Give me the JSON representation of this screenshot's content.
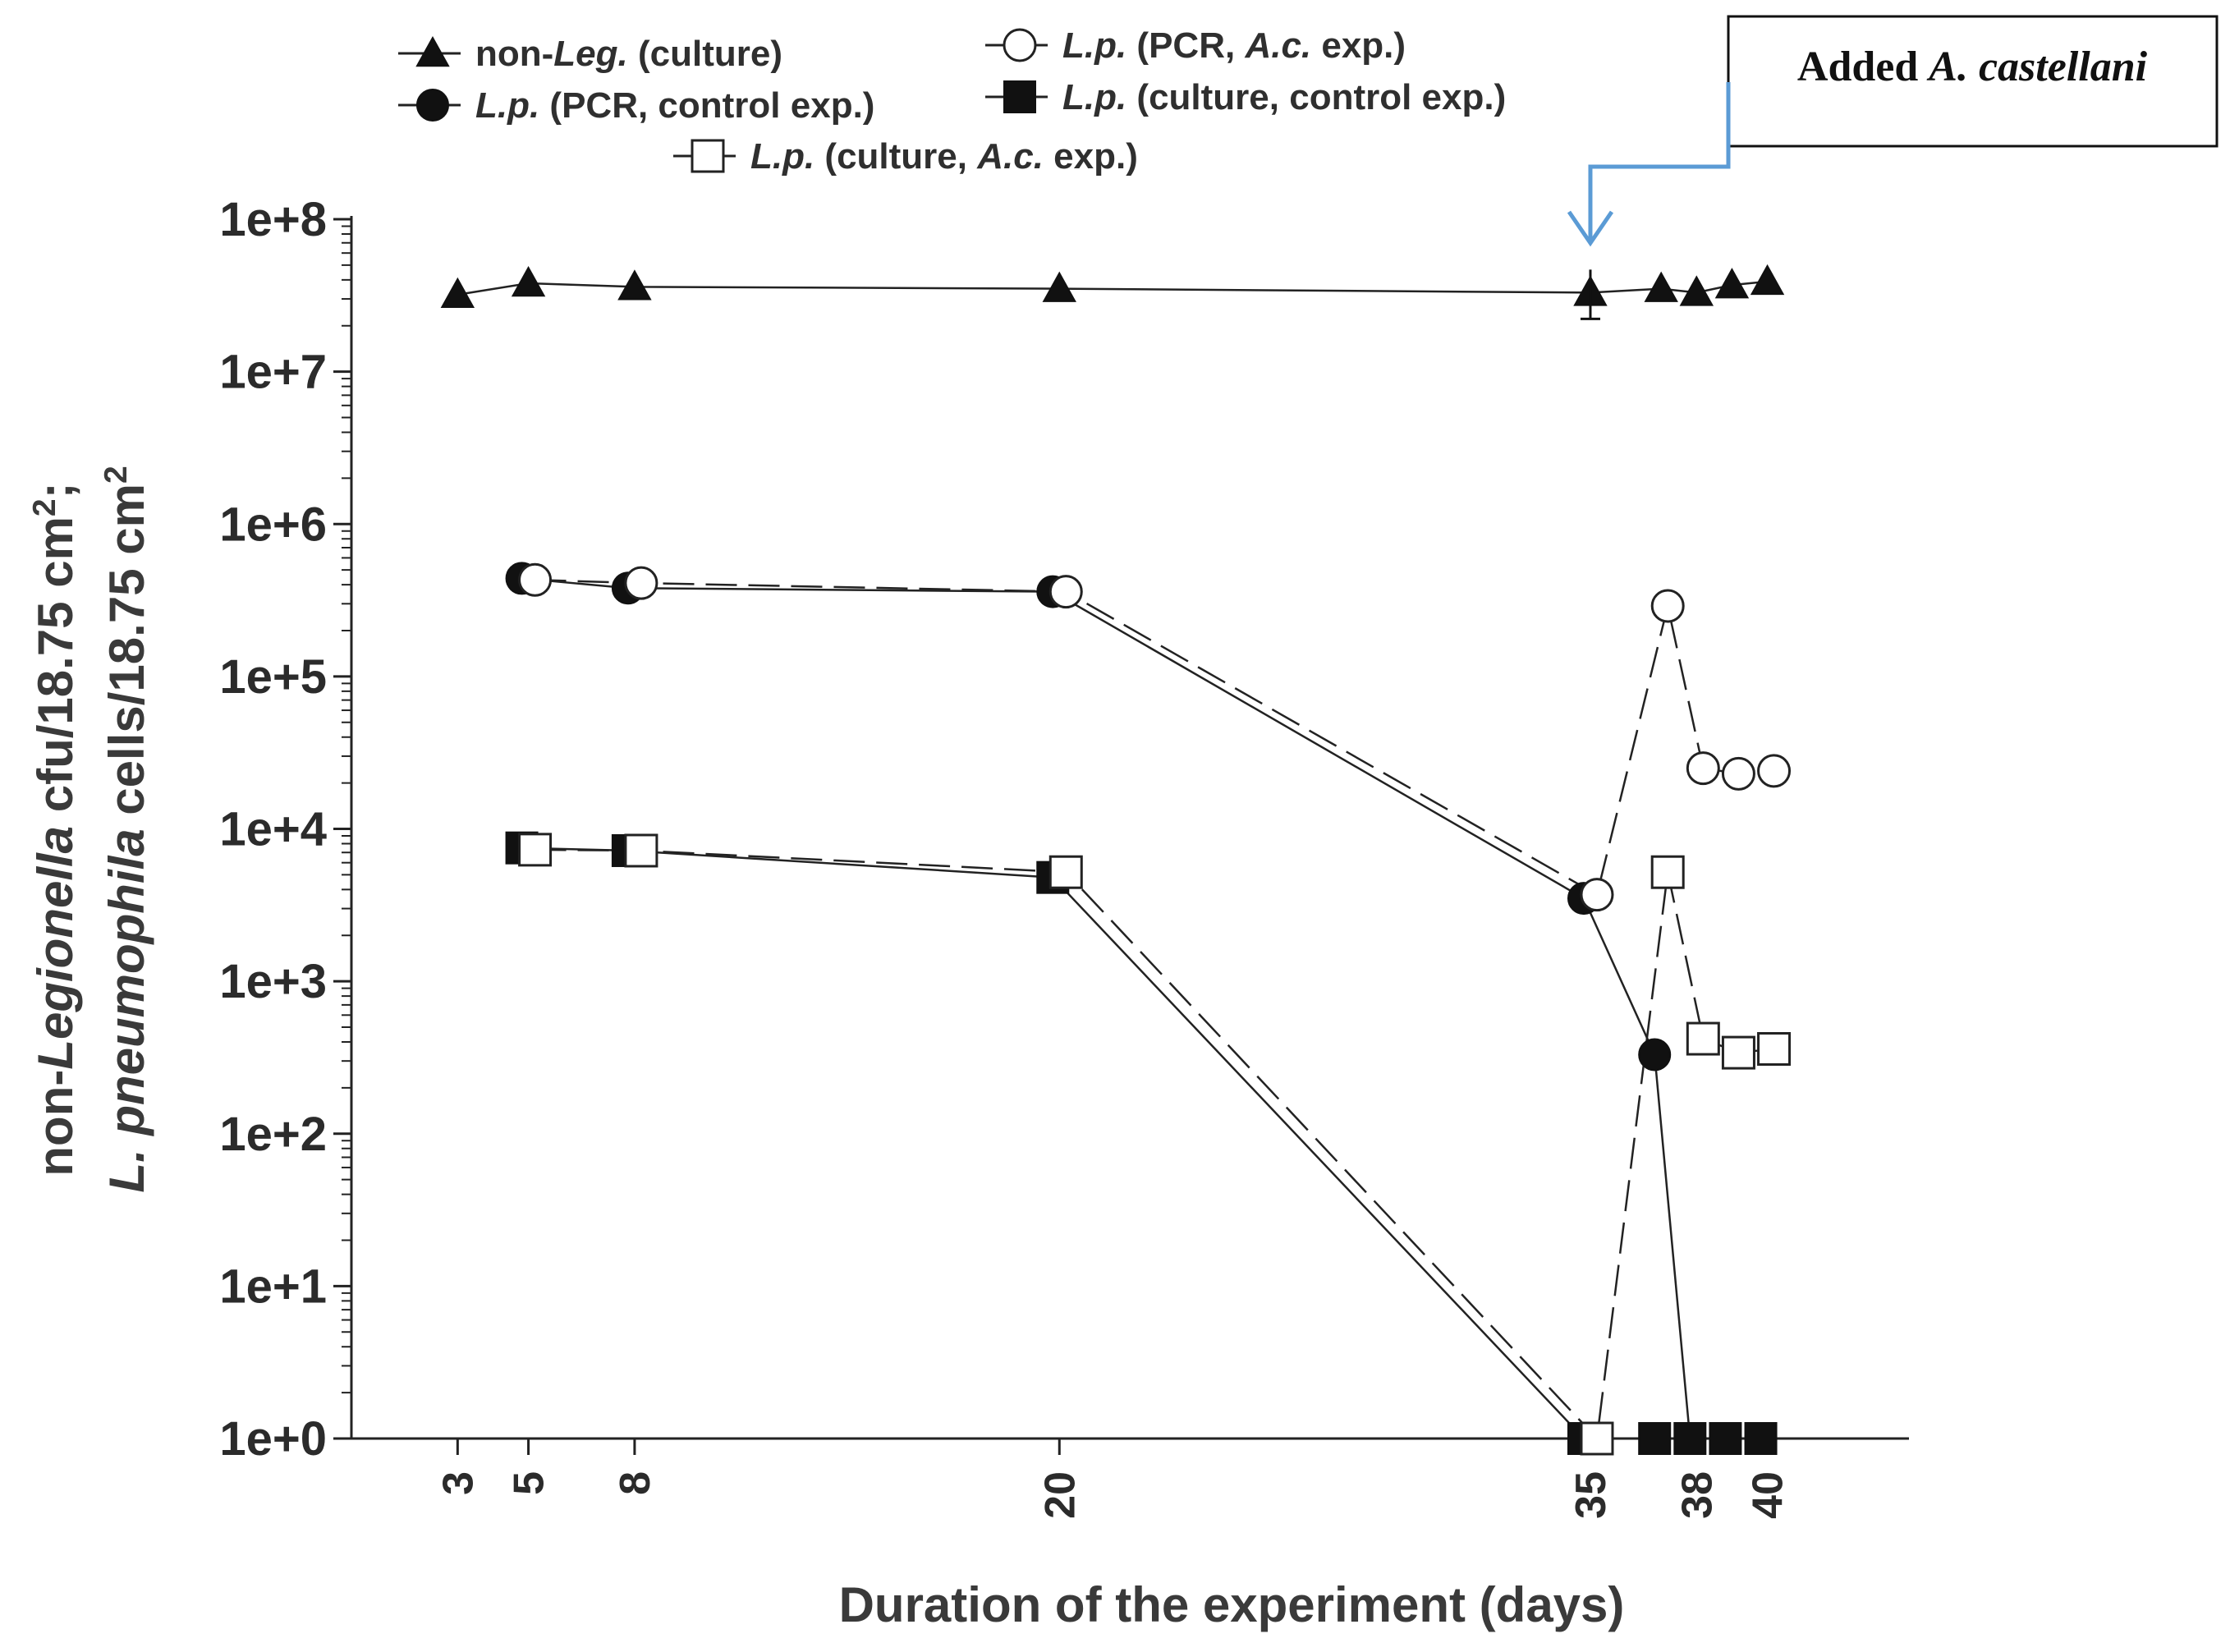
{
  "chart_data": {
    "type": "line",
    "xlabel": "Duration of the experiment (days)",
    "ylabel_line1_parts": [
      "non-",
      "Legionella",
      " cfu/18.75 cm",
      "2",
      ";"
    ],
    "ylabel_line2_parts": [
      "L. pneumophila",
      " cells/18.75 cm",
      "2"
    ],
    "yscale": "log",
    "ylim": [
      1,
      100000000
    ],
    "yticks": [
      1,
      10,
      100,
      1000,
      10000,
      100000,
      1000000,
      10000000,
      100000000
    ],
    "ytick_labels": [
      "1e+0",
      "1e+1",
      "1e+2",
      "1e+3",
      "1e+4",
      "1e+5",
      "1e+6",
      "1e+7",
      "1e+8"
    ],
    "xticks": [
      3,
      5,
      8,
      20,
      35,
      38,
      40
    ],
    "xlim": [
      0,
      44
    ],
    "annotation": {
      "text_parts": [
        "Added ",
        "A. castellani"
      ],
      "day": 35
    },
    "series": [
      {
        "name_parts": [
          "non-",
          "Leg.",
          " (culture)"
        ],
        "marker": "triangle-filled",
        "line": "solid",
        "x": [
          3,
          5,
          8,
          20,
          35,
          37,
          38,
          39,
          40
        ],
        "y": [
          32000000,
          38000000,
          36000000,
          35000000,
          33000000,
          35000000,
          33000000,
          37000000,
          39000000
        ]
      },
      {
        "name_parts": [
          "L.p.",
          " (PCR, control exp.)"
        ],
        "marker": "circle-filled",
        "line": "solid",
        "x": [
          5,
          8,
          20,
          35,
          37,
          38,
          39,
          40
        ],
        "y": [
          440000,
          380000,
          360000,
          3500,
          330,
          1,
          1,
          1
        ]
      },
      {
        "name_parts": [
          "L.p.",
          " (PCR, ",
          "A.c.",
          " exp.)"
        ],
        "marker": "circle-open",
        "line": "dashed",
        "x": [
          5,
          8,
          20,
          35,
          37,
          38,
          39,
          40
        ],
        "y": [
          430000,
          410000,
          360000,
          3700,
          290000,
          25000,
          23000,
          24000
        ]
      },
      {
        "name_parts": [
          "L.p.",
          " (culture, control exp.)"
        ],
        "marker": "square-filled",
        "line": "solid",
        "x": [
          5,
          8,
          20,
          35,
          37,
          38,
          39,
          40
        ],
        "y": [
          7500,
          7200,
          4800,
          1,
          1,
          1,
          1,
          1
        ]
      },
      {
        "name_parts": [
          "L.p.",
          " (culture, ",
          "A.c.",
          " exp.)"
        ],
        "marker": "square-open",
        "line": "dashed",
        "x": [
          5,
          8,
          20,
          35,
          37,
          38,
          39,
          40
        ],
        "y": [
          7300,
          7200,
          5200,
          1,
          5200,
          420,
          340,
          360
        ]
      }
    ]
  }
}
